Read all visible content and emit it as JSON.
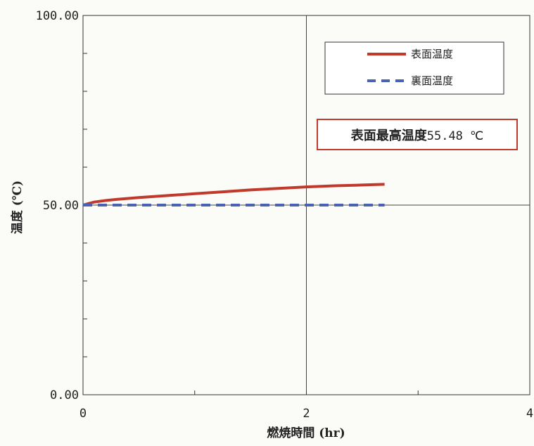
{
  "chart_data": {
    "type": "line",
    "xlabel": "燃焼時間 (hr)",
    "ylabel": "温度 (℃)",
    "xlim": [
      0,
      4
    ],
    "ylim": [
      0,
      100
    ],
    "x_ticks": [
      "0",
      "2",
      "4"
    ],
    "y_ticks": [
      "0.00",
      "50.00",
      "100.00"
    ],
    "gridlines": {
      "x": [
        2
      ],
      "y": [
        50
      ]
    },
    "legend_position": "top-right",
    "series": [
      {
        "name": "表面温度",
        "color": "#c0392b",
        "style": "solid",
        "x": [
          0,
          0.05,
          0.1,
          0.2,
          0.3,
          0.5,
          0.75,
          1.0,
          1.25,
          1.5,
          1.75,
          2.0,
          2.25,
          2.5,
          2.7
        ],
        "y": [
          50.0,
          50.4,
          50.8,
          51.2,
          51.5,
          52.0,
          52.5,
          53.0,
          53.5,
          54.0,
          54.4,
          54.8,
          55.1,
          55.3,
          55.48
        ]
      },
      {
        "name": "裏面温度",
        "color": "#4a63b0",
        "style": "dashed",
        "x": [
          0,
          2.7
        ],
        "y": [
          50.0,
          50.0
        ]
      }
    ],
    "annotation": {
      "bold_text": "表面最高温度",
      "value_text": "55.48 ℃",
      "border_color": "#c0392b"
    }
  }
}
